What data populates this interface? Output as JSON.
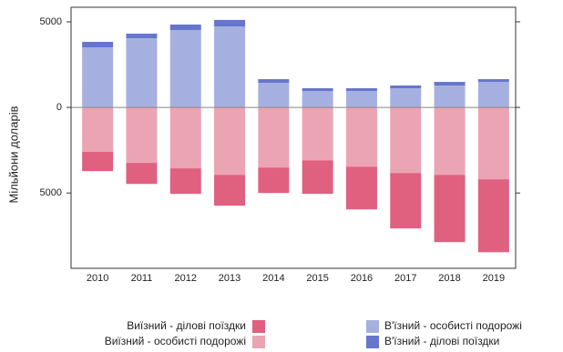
{
  "chart_data": {
    "type": "bar",
    "y_label": "Мільйони доларів",
    "categories": [
      "2010",
      "2011",
      "2012",
      "2013",
      "2014",
      "2015",
      "2016",
      "2017",
      "2018",
      "2019"
    ],
    "series": [
      {
        "name": "Виїзний - особисті подорожі",
        "color": "#eba4b3",
        "values": [
          -2600,
          -3240,
          -3560,
          -3940,
          -3510,
          -3090,
          -3460,
          -3830,
          -3940,
          -4200
        ]
      },
      {
        "name": "Виїзний - ділові поїздки",
        "color": "#e06080",
        "values": [
          -1120,
          -1230,
          -1490,
          -1800,
          -1490,
          -1960,
          -2500,
          -3240,
          -3930,
          -4260
        ]
      },
      {
        "name": "В'їзний - особисті подорожі",
        "color": "#a6b0e0",
        "values": [
          3510,
          4040,
          4520,
          4730,
          1440,
          960,
          960,
          1120,
          1280,
          1490
        ]
      },
      {
        "name": "В'їзний - ділові поїздки",
        "color": "#6676cc",
        "values": [
          320,
          270,
          320,
          380,
          210,
          160,
          160,
          160,
          210,
          160
        ]
      }
    ],
    "stacked": true,
    "ylim": [
      -9400,
      5850
    ],
    "yticks": [
      5000,
      0,
      {
        "value": -5000,
        "label": "5000"
      }
    ]
  }
}
